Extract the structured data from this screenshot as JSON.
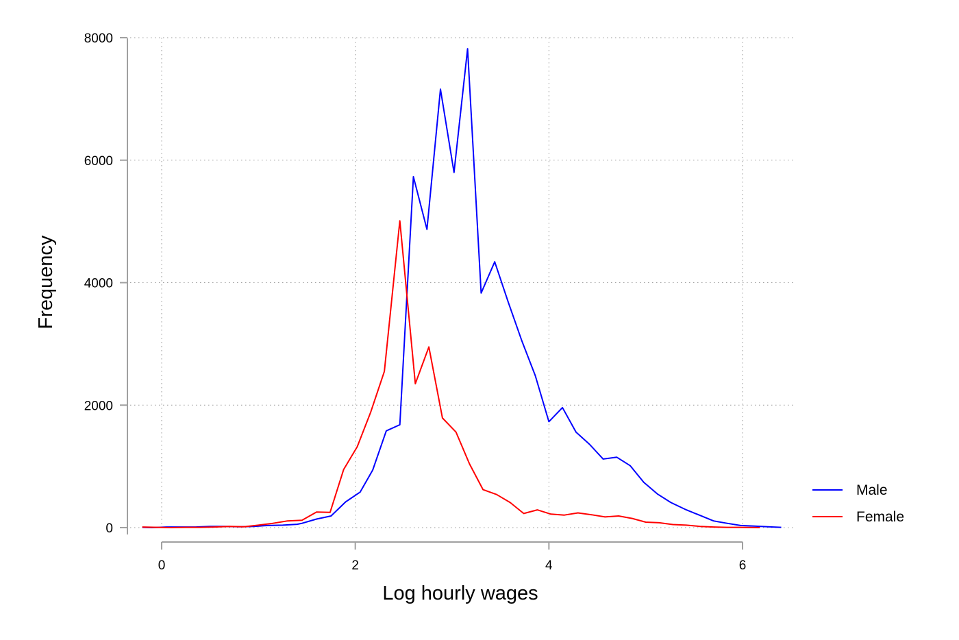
{
  "chart_data": {
    "type": "line",
    "title": "",
    "xlabel": "Log hourly wages",
    "ylabel": "Frequency",
    "xlim": [
      -0.35,
      6.55
    ],
    "ylim": [
      -150,
      8300
    ],
    "xticks": [
      0,
      2,
      4,
      6
    ],
    "yticks": [
      0,
      2000,
      4000,
      6000,
      8000
    ],
    "xtick_labels": [
      "0",
      "2",
      "4",
      "6"
    ],
    "ytick_labels": [
      "0",
      "2000",
      "4000",
      "6000",
      "8000"
    ],
    "grid": true,
    "legend_position": "right",
    "series": [
      {
        "name": "Male",
        "color": "#0000ff",
        "x": [
          -0.2,
          -0.1,
          0.05,
          0.2,
          0.35,
          0.5,
          0.65,
          0.8,
          0.95,
          1.1,
          1.25,
          1.4,
          1.45,
          1.6,
          1.75,
          1.9,
          2.05,
          2.18,
          2.32,
          2.46,
          2.6,
          2.74,
          2.88,
          3.02,
          3.16,
          3.3,
          3.44,
          3.58,
          3.72,
          3.86,
          4.0,
          4.14,
          4.28,
          4.42,
          4.56,
          4.7,
          4.84,
          4.98,
          5.12,
          5.26,
          5.42,
          5.56,
          5.7,
          5.84,
          5.98,
          6.12,
          6.26,
          6.4
        ],
        "y": [
          5,
          0,
          10,
          10,
          10,
          20,
          20,
          15,
          20,
          35,
          40,
          55,
          70,
          140,
          190,
          420,
          580,
          940,
          1580,
          1680,
          5730,
          4870,
          7160,
          5800,
          7820,
          3830,
          4340,
          3680,
          3050,
          2480,
          1730,
          1960,
          1560,
          1360,
          1120,
          1150,
          1010,
          740,
          550,
          410,
          290,
          200,
          110,
          70,
          35,
          25,
          15,
          5
        ]
      },
      {
        "name": "Female",
        "color": "#ff0000",
        "x": [
          -0.2,
          -0.05,
          0.1,
          0.25,
          0.4,
          0.55,
          0.7,
          0.85,
          1.0,
          1.15,
          1.3,
          1.45,
          1.6,
          1.74,
          1.88,
          2.02,
          2.16,
          2.3,
          2.46,
          2.62,
          2.76,
          2.9,
          3.04,
          3.18,
          3.32,
          3.46,
          3.6,
          3.74,
          3.88,
          4.02,
          4.16,
          4.3,
          4.44,
          4.58,
          4.72,
          4.86,
          5.0,
          5.14,
          5.28,
          5.42,
          5.56,
          5.7,
          5.84,
          5.98,
          6.18
        ],
        "y": [
          10,
          5,
          0,
          5,
          5,
          10,
          20,
          15,
          40,
          70,
          110,
          120,
          255,
          250,
          950,
          1320,
          1890,
          2550,
          5010,
          2350,
          2950,
          1790,
          1560,
          1040,
          620,
          540,
          410,
          230,
          290,
          220,
          205,
          240,
          210,
          175,
          190,
          150,
          90,
          80,
          50,
          40,
          20,
          10,
          5,
          5,
          0
        ]
      }
    ]
  }
}
